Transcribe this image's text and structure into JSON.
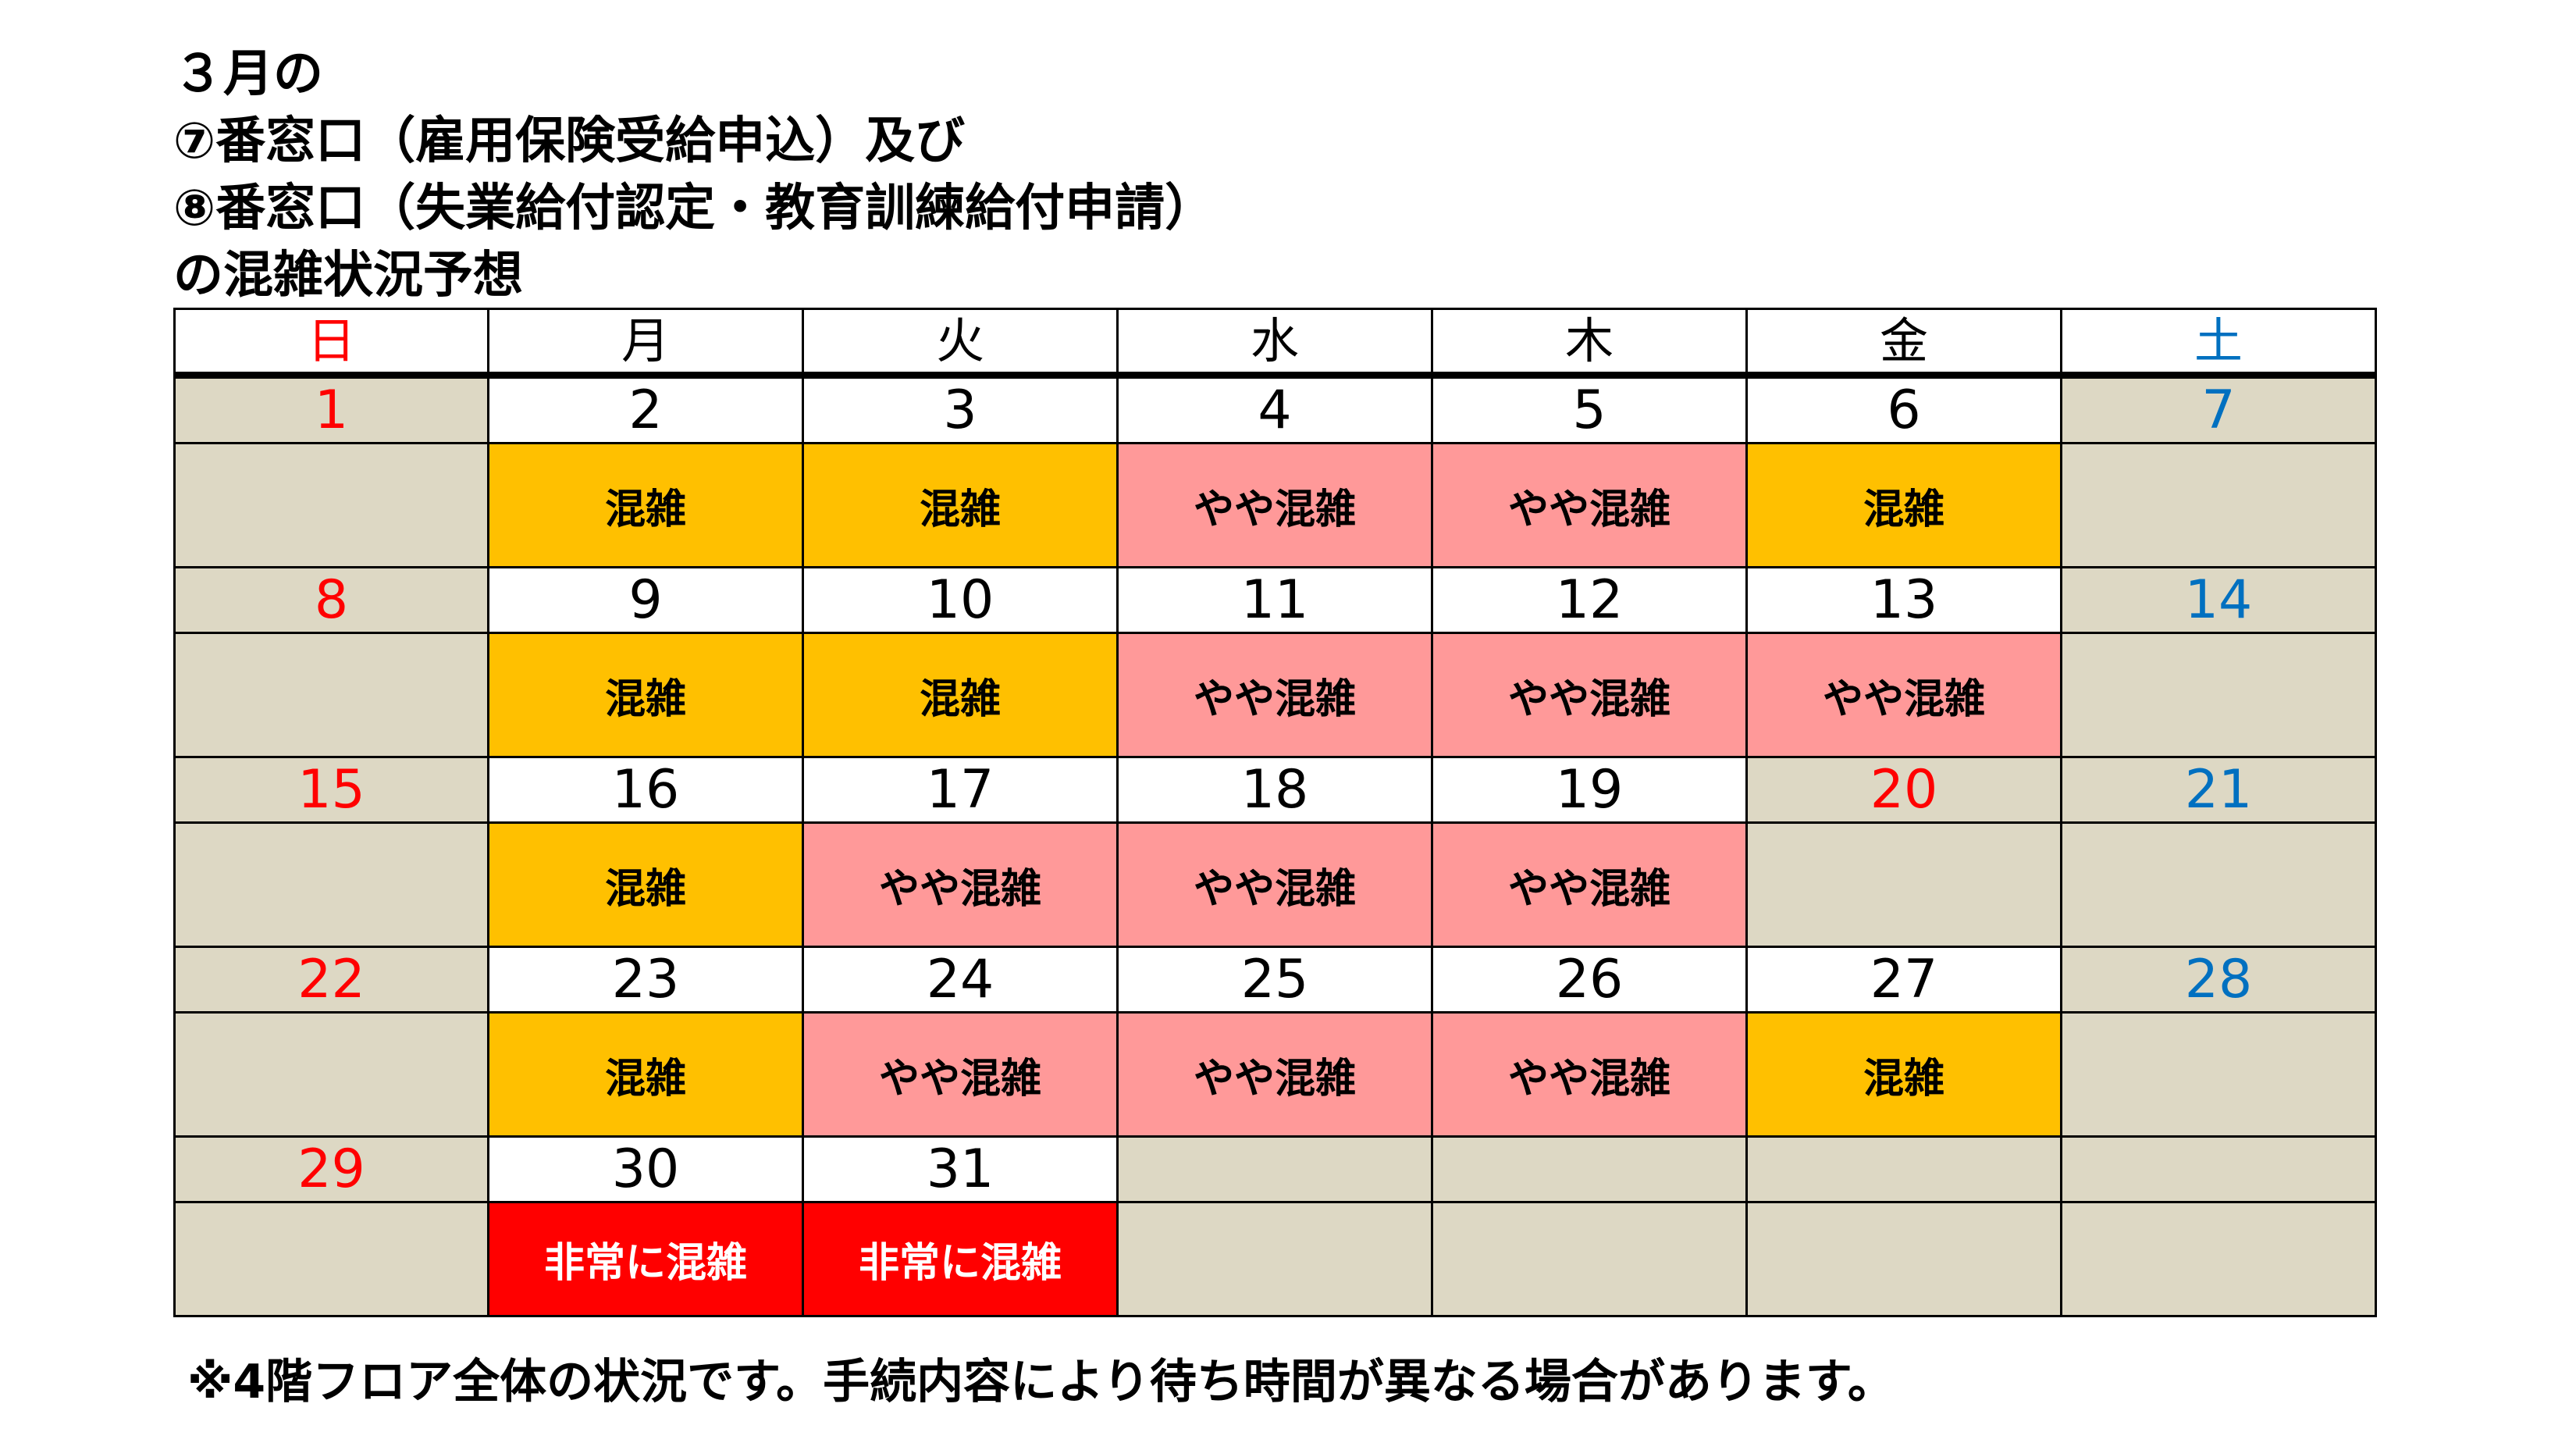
{
  "title": {
    "line1": "３月の",
    "line2": "⑦番窓口（雇用保険受給申込）及び",
    "line3": "⑧番窓口（失業給付認定・教育訓練給付申請）",
    "line4": "の混雑状況予想"
  },
  "weekdays": [
    "日",
    "月",
    "火",
    "水",
    "木",
    "金",
    "土"
  ],
  "labels": {
    "congested": "混雑",
    "somewhat": "やや混雑",
    "very": "非常に混雑"
  },
  "weeks": [
    {
      "dates": [
        "1",
        "2",
        "3",
        "4",
        "5",
        "6",
        "7"
      ],
      "status": [
        "",
        "混雑",
        "混雑",
        "やや混雑",
        "やや混雑",
        "混雑",
        ""
      ]
    },
    {
      "dates": [
        "8",
        "9",
        "10",
        "11",
        "12",
        "13",
        "14"
      ],
      "status": [
        "",
        "混雑",
        "混雑",
        "やや混雑",
        "やや混雑",
        "やや混雑",
        ""
      ]
    },
    {
      "dates": [
        "15",
        "16",
        "17",
        "18",
        "19",
        "20",
        "21"
      ],
      "status": [
        "",
        "混雑",
        "やや混雑",
        "やや混雑",
        "やや混雑",
        "",
        ""
      ]
    },
    {
      "dates": [
        "22",
        "23",
        "24",
        "25",
        "26",
        "27",
        "28"
      ],
      "status": [
        "",
        "混雑",
        "やや混雑",
        "やや混雑",
        "やや混雑",
        "混雑",
        ""
      ]
    },
    {
      "dates": [
        "29",
        "30",
        "31",
        "",
        "",
        "",
        ""
      ],
      "status": [
        "",
        "非常に混雑",
        "非常に混雑",
        "",
        "",
        "",
        ""
      ]
    }
  ],
  "colors": {
    "weekend_bg": "#ddd8c4",
    "congested": "#ffc000",
    "somewhat_congested": "#ff9999",
    "very_congested": "#ff0000",
    "sunday_holiday_text": "#ff0000",
    "saturday_text": "#0070c0"
  },
  "note": "※4階フロア全体の状況です。手続内容により待ち時間が異なる場合があります。"
}
